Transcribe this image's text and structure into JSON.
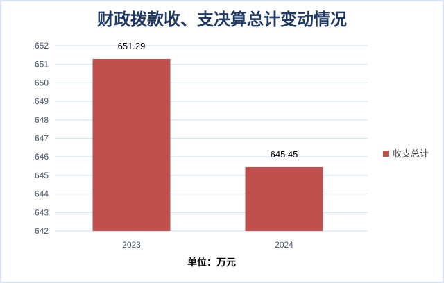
{
  "chart_data": {
    "type": "bar",
    "title": "财政拨款收、支决算总计变动情况",
    "categories": [
      "2023",
      "2024"
    ],
    "series": [
      {
        "name": "收支总计",
        "values": [
          651.29,
          645.45
        ],
        "color": "#c0504d"
      }
    ],
    "data_labels": [
      "651.29",
      "645.45"
    ],
    "xlabel": "单位：万元",
    "ylabel": "",
    "ylim": [
      642,
      652
    ],
    "yticks": [
      652,
      651,
      650,
      649,
      648,
      647,
      646,
      645,
      644,
      643,
      642
    ],
    "grid": true,
    "legend": "right",
    "gridline_color": "#d9e4f5",
    "border_color": "#d9e4f5"
  }
}
